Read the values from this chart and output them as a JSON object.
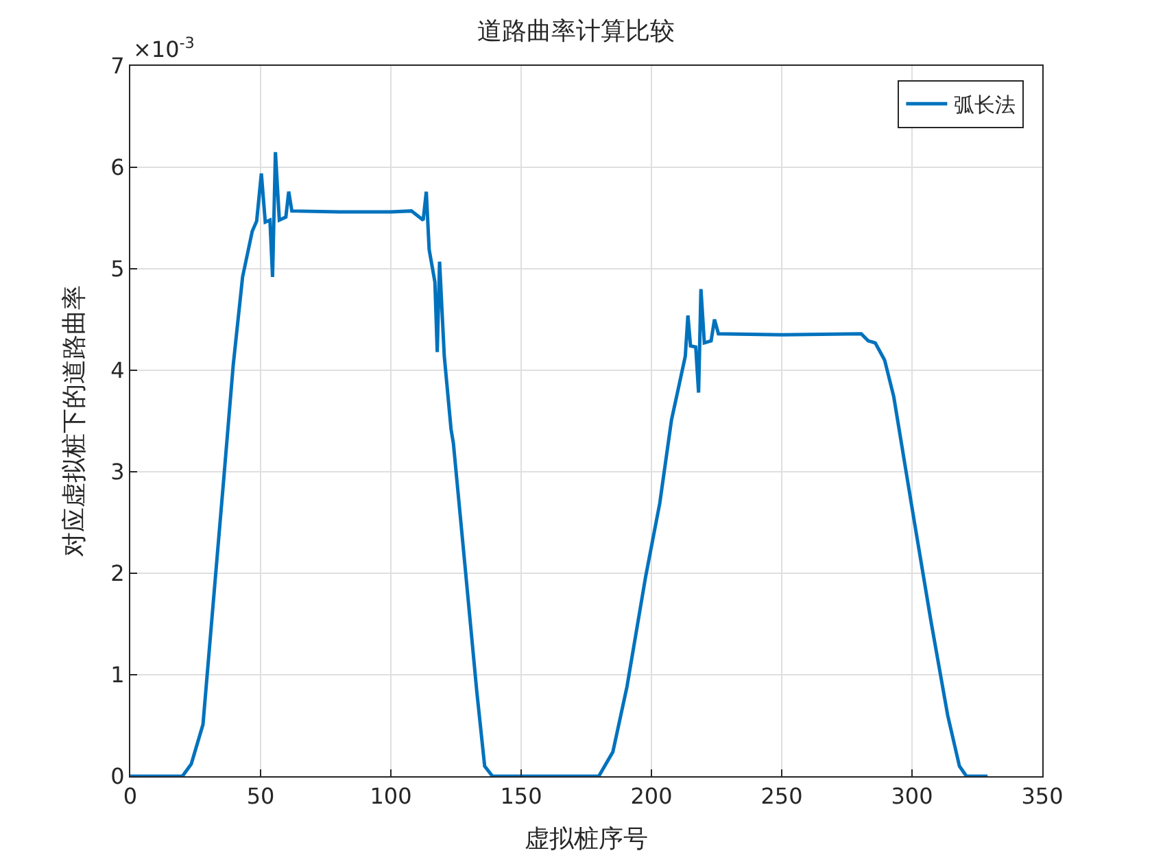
{
  "chart_data": {
    "type": "line",
    "title": "道路曲率计算比较",
    "xlabel": "虚拟桩序号",
    "ylabel": "对应虚拟桩下的道路曲率",
    "annotations": [
      "×10$^{-3}$"
    ],
    "xlim": [
      0,
      350
    ],
    "xticks": [
      0,
      50,
      100,
      150,
      200,
      250,
      300,
      350
    ],
    "ylim": [
      0,
      7
    ],
    "yticks": [
      0,
      1,
      2,
      3,
      4,
      5,
      6,
      7
    ],
    "grid": true,
    "legend": "top right",
    "line_style": "solid",
    "marker": "none",
    "series": [
      {
        "name": "弧长法",
        "color": "#0072bd",
        "x": [
          0,
          20,
          23.4,
          27.9,
          32.4,
          36,
          39.5,
          43.1,
          46.8,
          48.5,
          50.3,
          51.8,
          53.6,
          54.6,
          55.7,
          57.2,
          59.7,
          60.8,
          62,
          80,
          100,
          107.9,
          112.4,
          113.6,
          114.7,
          116.9,
          117.8,
          118.7,
          120.5,
          123.1,
          124,
          128.5,
          133,
          136,
          139,
          179.8,
          185.2,
          190.6,
          197.8,
          203.2,
          207.7,
          210.4,
          213,
          214,
          215,
          217,
          218.1,
          219,
          220.3,
          222.9,
          224.2,
          225.7,
          250,
          280.5,
          283.2,
          285.9,
          289.5,
          293,
          300.3,
          307.4,
          313.7,
          318.2,
          320.9,
          329
        ],
        "values": [
          0,
          0,
          0.12,
          0.51,
          1.88,
          2.97,
          4.05,
          4.92,
          5.37,
          5.47,
          5.94,
          5.46,
          5.48,
          4.92,
          6.15,
          5.48,
          5.51,
          5.76,
          5.57,
          5.56,
          5.56,
          5.57,
          5.48,
          5.76,
          5.19,
          4.87,
          4.18,
          5.07,
          4.14,
          3.42,
          3.28,
          2.06,
          0.83,
          0.1,
          0,
          0,
          0.24,
          0.88,
          1.97,
          2.69,
          3.51,
          3.83,
          4.14,
          4.54,
          4.24,
          4.23,
          3.78,
          4.8,
          4.27,
          4.29,
          4.5,
          4.36,
          4.35,
          4.36,
          4.29,
          4.27,
          4.1,
          3.74,
          2.6,
          1.51,
          0.6,
          0.1,
          0,
          0
        ]
      }
    ]
  }
}
